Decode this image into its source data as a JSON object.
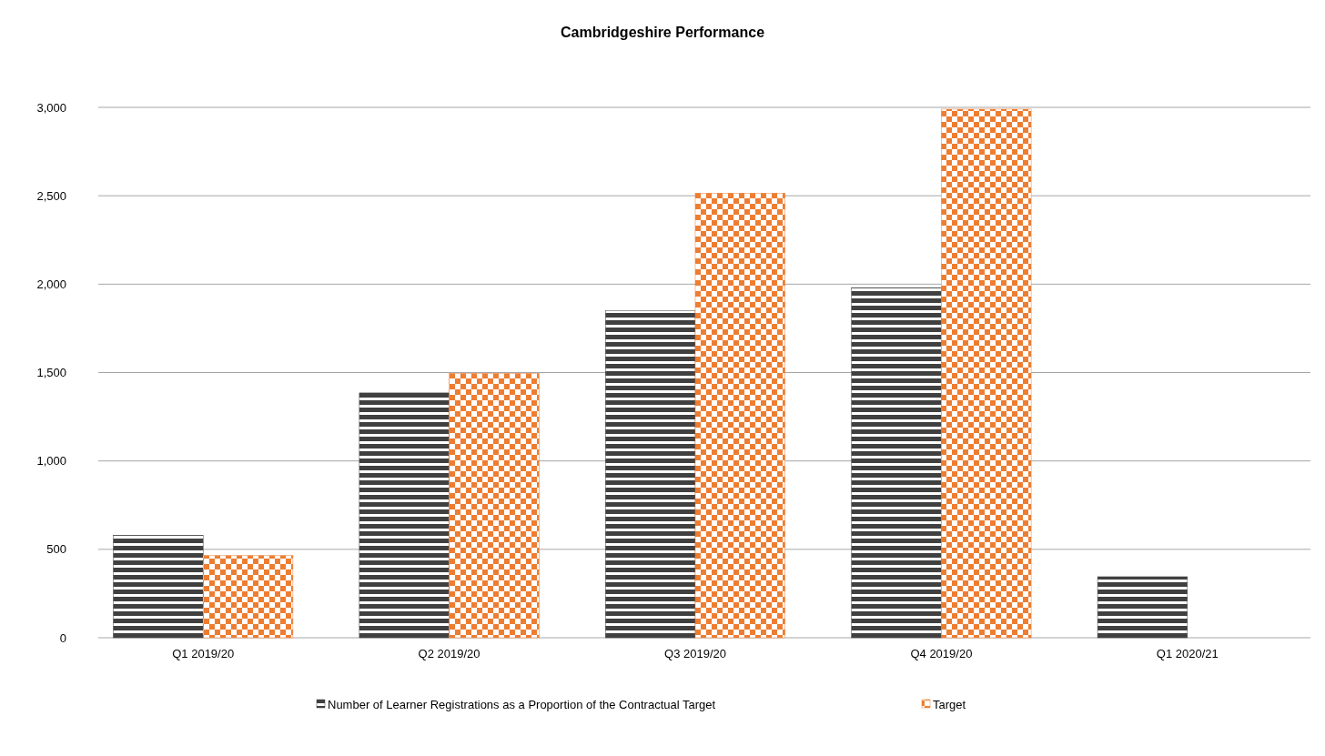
{
  "chart_data": {
    "type": "bar",
    "title": "Cambridgeshire Performance",
    "categories": [
      "Q1 2019/20",
      "Q2 2019/20",
      "Q3 2019/20",
      "Q4 2019/20",
      "Q1 2020/21"
    ],
    "series": [
      {
        "name": "Number of Learner Registrations as a Proportion of the Contractual Target",
        "color": "#404040",
        "values": [
          580,
          1385,
          1850,
          1980,
          345
        ]
      },
      {
        "name": "Target",
        "color": "#ed7d31",
        "values": [
          465,
          1495,
          2515,
          2990,
          null
        ]
      }
    ],
    "ylim": [
      0,
      3000
    ],
    "yticks": [
      {
        "value": 0,
        "label": "0"
      },
      {
        "value": 500,
        "label": "500"
      },
      {
        "value": 1000,
        "label": "1,000"
      },
      {
        "value": 1500,
        "label": "1,500"
      },
      {
        "value": 2000,
        "label": "2,000"
      },
      {
        "value": 2500,
        "label": "2,500"
      },
      {
        "value": 3000,
        "label": "3,000"
      }
    ],
    "grid": "y",
    "legend": "bottom"
  }
}
